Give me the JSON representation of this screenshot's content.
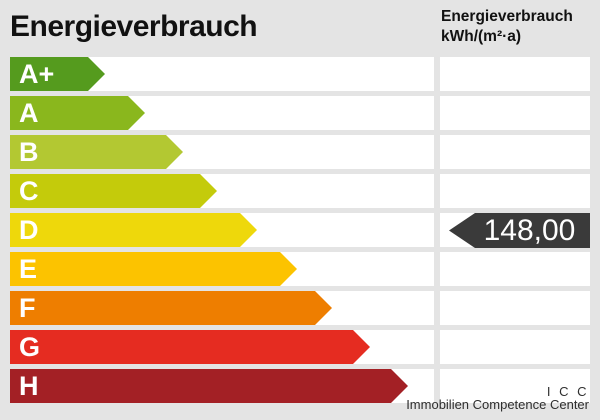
{
  "title": "Energieverbrauch",
  "unit_header": {
    "line1": "Energieverbrauch",
    "line2": "kWh/(m²·a)"
  },
  "value_marker": {
    "display": "148,00",
    "energy_class": "D",
    "row_index": 4
  },
  "footer": {
    "brand": "I C C",
    "brand_sub": "Immobilien Competence Center"
  },
  "colors": {
    "background": "#e4e4e4",
    "row_background": "#ffffff",
    "marker_background": "#3a3a3a",
    "marker_text": "#ffffff",
    "title_text": "#111111",
    "footer_text": "#2f2f2f"
  },
  "chart_data": {
    "type": "bar",
    "orientation": "horizontal",
    "title": "Energieverbrauch",
    "unit_label": "kWh/(m²·a)",
    "categories": [
      "A+",
      "A",
      "B",
      "C",
      "D",
      "E",
      "F",
      "G",
      "H"
    ],
    "bar_colors": [
      "#559b1e",
      "#8ab71d",
      "#b3c832",
      "#c4cb0b",
      "#eed80b",
      "#fcc300",
      "#ee7e00",
      "#e52c21",
      "#a32025"
    ],
    "bar_relative_lengths": [
      95,
      135,
      173,
      207,
      247,
      287,
      322,
      360,
      398
    ],
    "marked_value": 148.0,
    "marked_value_display": "148,00",
    "marked_class": "D",
    "legend_position": "none",
    "grid": false
  }
}
